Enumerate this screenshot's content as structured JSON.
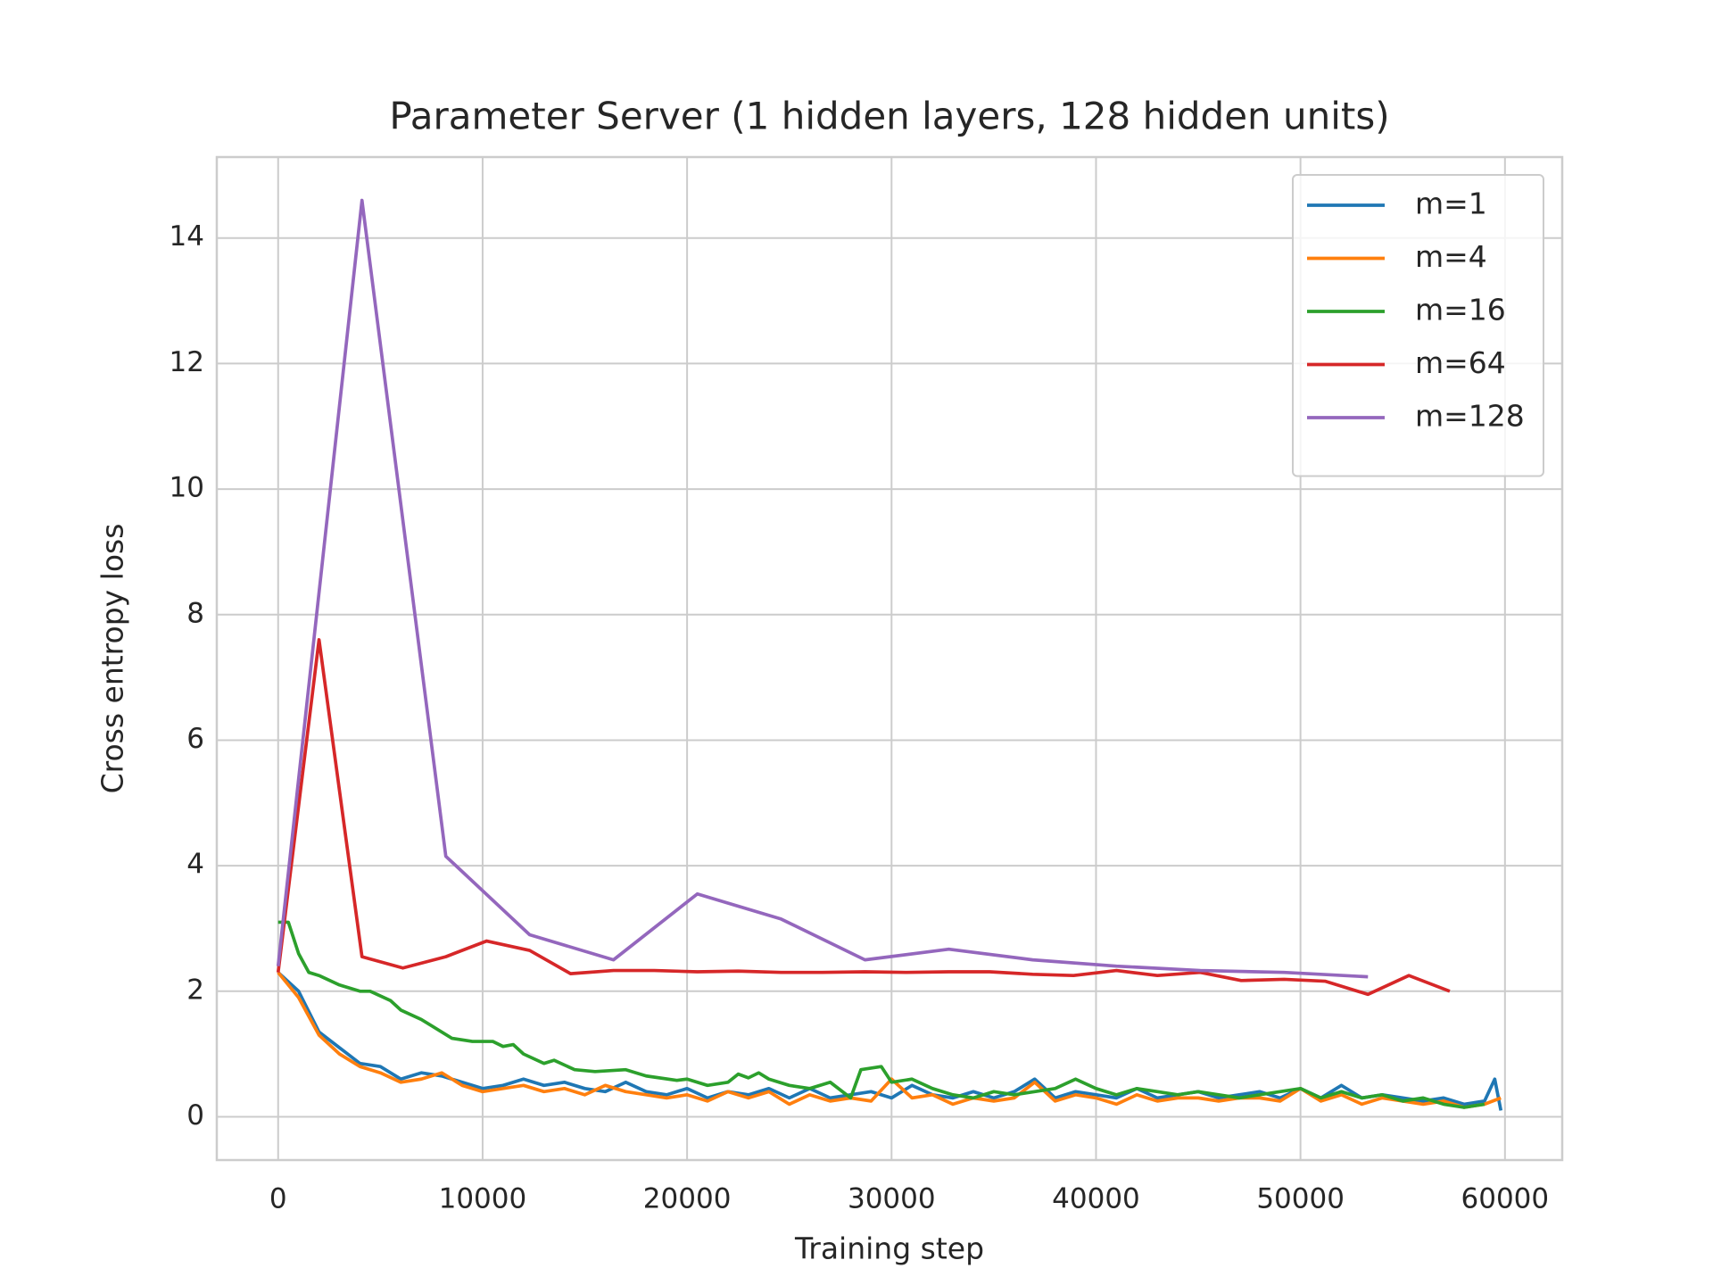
{
  "chart_data": {
    "type": "line",
    "title": "Parameter Server (1 hidden layers, 128 hidden units)",
    "x_label": "Training step",
    "y_label": "Cross entropy loss",
    "xlim": [
      -3000,
      62800
    ],
    "ylim": [
      -0.69,
      15.29
    ],
    "xticks": [
      0,
      10000,
      20000,
      30000,
      40000,
      50000,
      60000
    ],
    "yticks": [
      0,
      2,
      4,
      6,
      8,
      10,
      12,
      14
    ],
    "grid": true,
    "legend": "upper right",
    "series": [
      {
        "name": "m=1",
        "color": "#1f77b4",
        "x": [
          0,
          1000,
          2000,
          3000,
          4000,
          5000,
          6000,
          7000,
          8000,
          9000,
          10000,
          11000,
          12000,
          13000,
          14000,
          15000,
          16000,
          17000,
          18000,
          19000,
          20000,
          21000,
          22000,
          23000,
          24000,
          25000,
          26000,
          27000,
          28000,
          29000,
          30000,
          31000,
          32000,
          33000,
          34000,
          35000,
          36000,
          37000,
          38000,
          39000,
          40000,
          41000,
          42000,
          43000,
          44000,
          45000,
          46000,
          47000,
          48000,
          49000,
          50000,
          51000,
          52000,
          53000,
          54000,
          55000,
          56000,
          57000,
          58000,
          59000,
          59500,
          59800
        ],
        "values": [
          2.3,
          2.0,
          1.35,
          1.1,
          0.85,
          0.8,
          0.6,
          0.7,
          0.65,
          0.55,
          0.45,
          0.5,
          0.6,
          0.5,
          0.55,
          0.45,
          0.4,
          0.55,
          0.4,
          0.35,
          0.45,
          0.3,
          0.4,
          0.35,
          0.45,
          0.3,
          0.45,
          0.3,
          0.35,
          0.4,
          0.3,
          0.5,
          0.35,
          0.3,
          0.4,
          0.3,
          0.4,
          0.6,
          0.3,
          0.4,
          0.35,
          0.3,
          0.45,
          0.3,
          0.35,
          0.4,
          0.3,
          0.35,
          0.4,
          0.3,
          0.45,
          0.3,
          0.5,
          0.3,
          0.35,
          0.3,
          0.25,
          0.3,
          0.2,
          0.25,
          0.6,
          0.1
        ]
      },
      {
        "name": "m=4",
        "color": "#ff7f0e",
        "x": [
          0,
          1000,
          2000,
          3000,
          4000,
          5000,
          6000,
          7000,
          8000,
          9000,
          10000,
          11000,
          12000,
          13000,
          14000,
          15000,
          16000,
          17000,
          18000,
          19000,
          20000,
          21000,
          22000,
          23000,
          24000,
          25000,
          26000,
          27000,
          28000,
          29000,
          30000,
          31000,
          32000,
          33000,
          34000,
          35000,
          36000,
          37000,
          38000,
          39000,
          40000,
          41000,
          42000,
          43000,
          44000,
          45000,
          46000,
          47000,
          48000,
          49000,
          50000,
          51000,
          52000,
          53000,
          54000,
          55000,
          56000,
          57000,
          58000,
          59000,
          59800
        ],
        "values": [
          2.3,
          1.9,
          1.3,
          1.0,
          0.8,
          0.7,
          0.55,
          0.6,
          0.7,
          0.5,
          0.4,
          0.45,
          0.5,
          0.4,
          0.45,
          0.35,
          0.5,
          0.4,
          0.35,
          0.3,
          0.35,
          0.25,
          0.4,
          0.3,
          0.4,
          0.2,
          0.35,
          0.25,
          0.3,
          0.25,
          0.6,
          0.3,
          0.35,
          0.2,
          0.3,
          0.25,
          0.3,
          0.55,
          0.25,
          0.35,
          0.3,
          0.2,
          0.35,
          0.25,
          0.3,
          0.3,
          0.25,
          0.3,
          0.3,
          0.25,
          0.45,
          0.25,
          0.35,
          0.2,
          0.3,
          0.25,
          0.2,
          0.25,
          0.15,
          0.2,
          0.3
        ]
      },
      {
        "name": "m=16",
        "color": "#2ca02c",
        "x": [
          0,
          500,
          1000,
          1500,
          2000,
          3000,
          4000,
          4500,
          5500,
          6000,
          7000,
          7500,
          8500,
          9500,
          10500,
          11000,
          11500,
          12000,
          13000,
          13500,
          14500,
          15500,
          17000,
          18000,
          19500,
          20000,
          21000,
          22000,
          22500,
          23000,
          23500,
          24000,
          25000,
          26000,
          27000,
          28000,
          28500,
          29500,
          30000,
          31000,
          32000,
          33000,
          34000,
          35000,
          36000,
          37000,
          38000,
          39000,
          40000,
          41000,
          42000,
          43000,
          44000,
          45000,
          46000,
          47000,
          48000,
          49000,
          50000,
          51000,
          52000,
          53000,
          54000,
          55000,
          56000,
          57000,
          58000,
          59000
        ],
        "values": [
          3.1,
          3.1,
          2.6,
          2.3,
          2.25,
          2.1,
          2.0,
          2.0,
          1.85,
          1.7,
          1.55,
          1.45,
          1.25,
          1.2,
          1.2,
          1.12,
          1.15,
          1.0,
          0.85,
          0.9,
          0.75,
          0.72,
          0.75,
          0.65,
          0.58,
          0.6,
          0.5,
          0.55,
          0.68,
          0.62,
          0.7,
          0.6,
          0.5,
          0.45,
          0.55,
          0.3,
          0.75,
          0.8,
          0.55,
          0.6,
          0.45,
          0.35,
          0.3,
          0.4,
          0.35,
          0.4,
          0.45,
          0.6,
          0.45,
          0.35,
          0.45,
          0.4,
          0.35,
          0.4,
          0.35,
          0.3,
          0.35,
          0.4,
          0.45,
          0.3,
          0.4,
          0.3,
          0.35,
          0.25,
          0.3,
          0.2,
          0.15,
          0.2
        ]
      },
      {
        "name": "m=64",
        "color": "#d62728",
        "x": [
          0,
          2000,
          4100,
          6100,
          8200,
          10200,
          12300,
          14300,
          16400,
          18400,
          20500,
          22500,
          24600,
          26600,
          28700,
          30700,
          32800,
          34800,
          36900,
          38900,
          41000,
          43000,
          45100,
          47100,
          49200,
          51200,
          53300,
          55300,
          57300
        ],
        "values": [
          2.3,
          7.6,
          2.55,
          2.37,
          2.55,
          2.8,
          2.65,
          2.28,
          2.33,
          2.33,
          2.31,
          2.32,
          2.3,
          2.3,
          2.31,
          2.3,
          2.31,
          2.31,
          2.27,
          2.25,
          2.33,
          2.25,
          2.3,
          2.17,
          2.19,
          2.16,
          1.95,
          2.25,
          2.0
        ]
      },
      {
        "name": "m=128",
        "color": "#9467bd",
        "x": [
          0,
          4100,
          8200,
          12300,
          16400,
          20500,
          24600,
          28700,
          32800,
          36900,
          41000,
          45100,
          49200,
          53300
        ],
        "values": [
          2.4,
          14.6,
          4.15,
          2.9,
          2.5,
          3.55,
          3.15,
          2.5,
          2.67,
          2.5,
          2.4,
          2.33,
          2.3,
          2.23
        ]
      }
    ]
  }
}
